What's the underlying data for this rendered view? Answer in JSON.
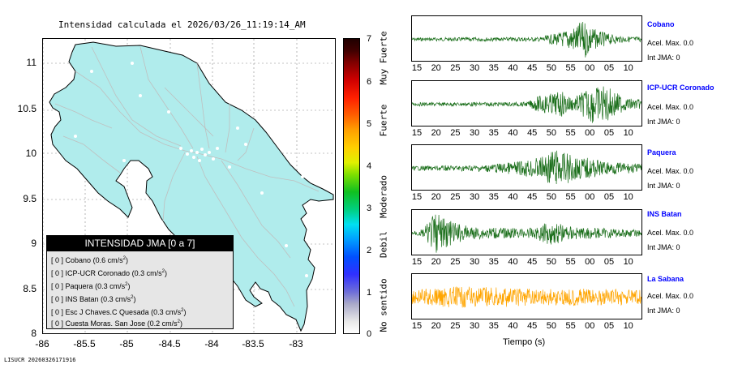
{
  "map": {
    "title": "Intensidad calculada el 2026/03/26_11:19:14_AM",
    "lat_labels": [
      "11",
      "10.5",
      "10",
      "9.5",
      "9",
      "8.5",
      "8"
    ],
    "lon_labels": [
      "-86",
      "-85.5",
      "-85",
      "-84.5",
      "-84",
      "-83.5",
      "-83"
    ],
    "fill_color": "#b0ecec"
  },
  "legend": {
    "title": "INTENSIDAD JMA [0 a 7]",
    "rows": [
      {
        "level": "[ 0 ]",
        "name": "Cobano",
        "value": "(0.6 cm/s",
        "exp": "2",
        "close": ")"
      },
      {
        "level": "[ 0 ]",
        "name": "ICP-UCR Coronado",
        "value": "(0.3 cm/s",
        "exp": "2",
        "close": ")"
      },
      {
        "level": "[ 0 ]",
        "name": "Paquera",
        "value": "(0.3 cm/s",
        "exp": "2",
        "close": ")"
      },
      {
        "level": "[ 0 ]",
        "name": "INS Batan",
        "value": "(0.3 cm/s",
        "exp": "2",
        "close": ")"
      },
      {
        "level": "[ 0 ]",
        "name": "Esc J Chaves.C Quesada",
        "value": "(0.3 cm/s",
        "exp": "2",
        "close": ")"
      },
      {
        "level": "[ 0 ]",
        "name": "Cuesta Moras. San Jose",
        "value": "(0.2 cm/s",
        "exp": "2",
        "close": ")"
      }
    ]
  },
  "colorbar": {
    "numbers": [
      "7",
      "6",
      "5",
      "4",
      "3",
      "2",
      "1",
      "0"
    ],
    "words": [
      "Muy Fuerte",
      "Fuerte",
      "Moderado",
      "Debil",
      "No sentido"
    ]
  },
  "stations": [
    {
      "name": "Cobano",
      "acel": "Acel. Max. 0.0",
      "int": "Int JMA: 0",
      "color": "#1a6e1a"
    },
    {
      "name": "ICP-UCR Coronado",
      "acel": "Acel. Max. 0.0",
      "int": "Int JMA: 0",
      "color": "#1a6e1a"
    },
    {
      "name": "Paquera",
      "acel": "Acel. Max. 0.0",
      "int": "Int JMA: 0",
      "color": "#1a6e1a"
    },
    {
      "name": "INS Batan",
      "acel": "Acel. Max. 0.0",
      "int": "Int JMA: 0",
      "color": "#1a6e1a"
    },
    {
      "name": "La Sabana",
      "acel": "Acel. Max. 0.0",
      "int": "Int JMA: 0",
      "color": "#ffa500"
    }
  ],
  "time_ticks": [
    "15",
    "20",
    "25",
    "30",
    "35",
    "40",
    "45",
    "50",
    "55",
    "00",
    "05",
    "10"
  ],
  "xaxis_title": "Tiempo (s)",
  "footer": "LISUCR 20260326171916"
}
